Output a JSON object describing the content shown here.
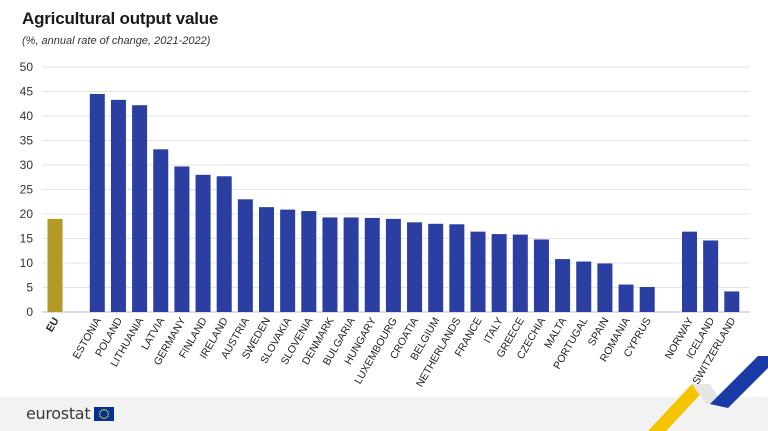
{
  "title": "Agricultural output value",
  "subtitle": "(%, annual rate of change, 2021-2022)",
  "logo_text": "eurostat",
  "colors": {
    "eu_bar": "#b39a27",
    "country_bar": "#2b3ea1",
    "grid": "#e3e3e3",
    "axis_text": "#333333",
    "footer_bg": "#f2f2f2",
    "brand_yellow": "#f5c400",
    "brand_blue": "#1a3aa8"
  },
  "chart_data": {
    "type": "bar",
    "title": "Agricultural output value",
    "subtitle": "(%, annual rate of change, 2021-2022)",
    "xlabel": "",
    "ylabel": "",
    "ylim": [
      0,
      50
    ],
    "yticks": [
      0,
      5,
      10,
      15,
      20,
      25,
      30,
      35,
      40,
      45,
      50
    ],
    "grid": true,
    "groups": [
      {
        "categories": [
          "EU"
        ],
        "values": [
          19.0
        ],
        "color_key": "eu_bar",
        "bold": true
      },
      {
        "categories": [
          "ESTONIA",
          "POLAND",
          "LITHUANIA",
          "LATVIA",
          "GERMANY",
          "FINLAND",
          "IRELAND",
          "AUSTRIA",
          "SWEDEN",
          "SLOVAKIA",
          "SLOVENIA",
          "DENMARK",
          "BULGARIA",
          "HUNGARY",
          "LUXEMBOURG",
          "CROATIA",
          "BELGIUM",
          "NETHERLANDS",
          "FRANCE",
          "ITALY",
          "GREECE",
          "CZECHIA",
          "MALTA",
          "PORTUGAL",
          "SPAIN",
          "ROMANIA",
          "CYPRUS"
        ],
        "values": [
          44.5,
          43.3,
          42.2,
          33.2,
          29.7,
          28.0,
          27.7,
          23.0,
          21.4,
          20.9,
          20.6,
          19.3,
          19.3,
          19.2,
          19.0,
          18.3,
          18.0,
          17.9,
          16.4,
          15.9,
          15.8,
          14.8,
          10.8,
          10.3,
          9.9,
          5.6,
          5.1
        ],
        "color_key": "country_bar",
        "bold": false
      },
      {
        "categories": [
          "NORWAY",
          "ICELAND",
          "SWITZERLAND"
        ],
        "values": [
          16.4,
          14.6,
          4.2
        ],
        "color_key": "country_bar",
        "bold": false
      }
    ]
  }
}
